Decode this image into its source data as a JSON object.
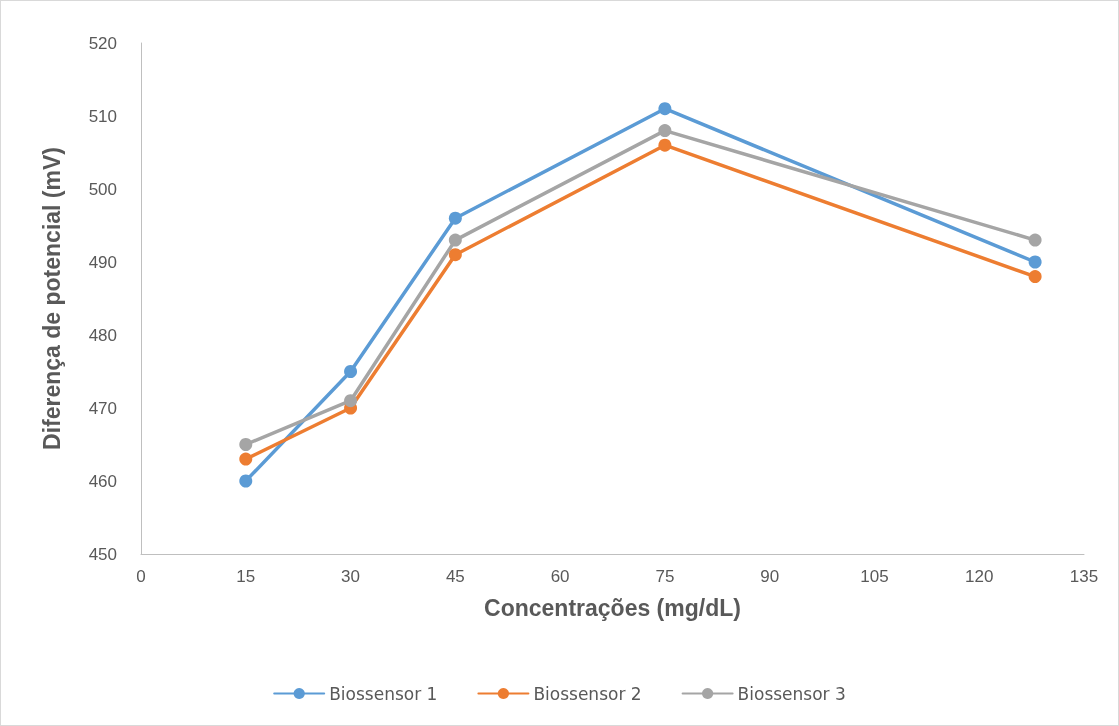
{
  "chart_data": {
    "type": "line",
    "xlabel": "Concentrações (mg/dL)",
    "ylabel": "Diferença de potencial (mV)",
    "x": [
      15,
      30,
      45,
      75,
      128
    ],
    "series": [
      {
        "name": "Biossensor 1",
        "color": "#5b9bd5",
        "values": [
          460,
          475,
          496,
          511,
          490
        ]
      },
      {
        "name": "Biossensor 2",
        "color": "#ed7d31",
        "values": [
          463,
          470,
          491,
          506,
          488
        ]
      },
      {
        "name": "Biossensor 3",
        "color": "#a5a5a5",
        "values": [
          465,
          471,
          493,
          508,
          493
        ]
      }
    ],
    "xlim": [
      0,
      135
    ],
    "xticks": [
      0,
      15,
      30,
      45,
      60,
      75,
      90,
      105,
      120,
      135
    ],
    "ylim": [
      450,
      520
    ],
    "yticks": [
      450,
      460,
      470,
      480,
      490,
      500,
      510,
      520
    ],
    "grid": false,
    "legend": "bottom",
    "marker": "circle",
    "line_style": "solid"
  }
}
